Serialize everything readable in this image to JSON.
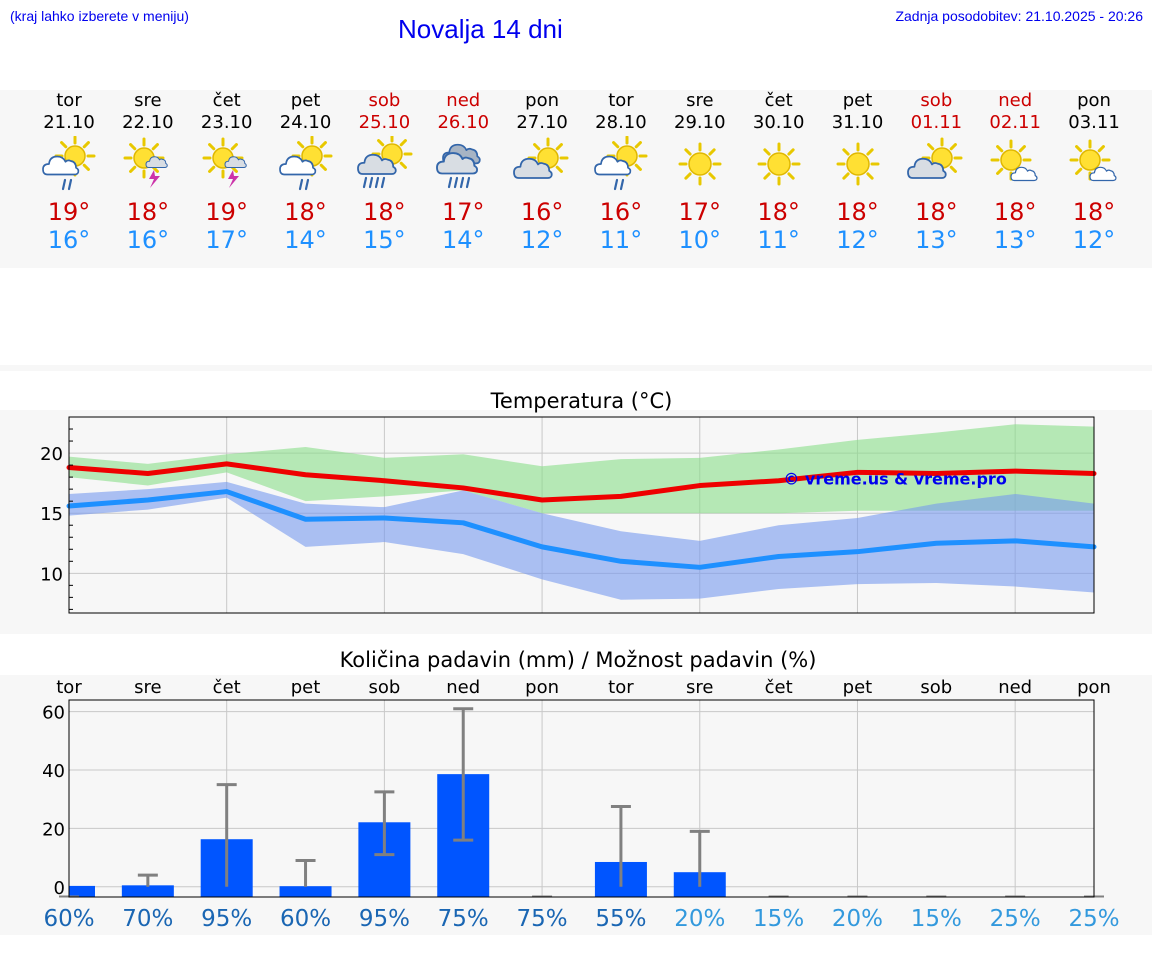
{
  "header": {
    "hint": "(kraj lahko izberete v meniju)",
    "title": "Novalja 14 dni",
    "updated": "Zadnja posodobitev: 21.10.2025 - 20:26"
  },
  "colors": {
    "max_temp": "#cc0000",
    "min_temp": "#1e90ff",
    "weekend": "#cc0000",
    "precip_bar": "#0055ff",
    "prob_dark": "#1a66b3",
    "prob_light": "#3399dd"
  },
  "days": [
    {
      "name": "tor",
      "date": "21.10",
      "icon": "sun-cloud-rain-icon",
      "tmax": "19°",
      "tmin": "16°",
      "weekend": false
    },
    {
      "name": "sre",
      "date": "22.10",
      "icon": "sun-thunder-icon",
      "tmax": "18°",
      "tmin": "16°",
      "weekend": false
    },
    {
      "name": "čet",
      "date": "23.10",
      "icon": "sun-thunder-icon",
      "tmax": "19°",
      "tmin": "17°",
      "weekend": false
    },
    {
      "name": "pet",
      "date": "24.10",
      "icon": "sun-cloud-rain-icon",
      "tmax": "18°",
      "tmin": "14°",
      "weekend": false
    },
    {
      "name": "sob",
      "date": "25.10",
      "icon": "sun-cloud-heavy-rain-icon",
      "tmax": "18°",
      "tmin": "15°",
      "weekend": true
    },
    {
      "name": "ned",
      "date": "26.10",
      "icon": "cloud-heavy-rain-icon",
      "tmax": "17°",
      "tmin": "14°",
      "weekend": true
    },
    {
      "name": "pon",
      "date": "27.10",
      "icon": "sun-cloud-icon",
      "tmax": "16°",
      "tmin": "12°",
      "weekend": false
    },
    {
      "name": "tor",
      "date": "28.10",
      "icon": "sun-cloud-rain-icon",
      "tmax": "16°",
      "tmin": "11°",
      "weekend": false
    },
    {
      "name": "sre",
      "date": "29.10",
      "icon": "sun-icon",
      "tmax": "17°",
      "tmin": "10°",
      "weekend": false
    },
    {
      "name": "čet",
      "date": "30.10",
      "icon": "sun-icon",
      "tmax": "18°",
      "tmin": "11°",
      "weekend": false
    },
    {
      "name": "pet",
      "date": "31.10",
      "icon": "sun-icon",
      "tmax": "18°",
      "tmin": "12°",
      "weekend": false
    },
    {
      "name": "sob",
      "date": "01.11",
      "icon": "sun-cloud-icon",
      "tmax": "18°",
      "tmin": "13°",
      "weekend": true
    },
    {
      "name": "ned",
      "date": "02.11",
      "icon": "sun-small-cloud-icon",
      "tmax": "18°",
      "tmin": "13°",
      "weekend": true
    },
    {
      "name": "pon",
      "date": "03.11",
      "icon": "sun-small-cloud-icon",
      "tmax": "18°",
      "tmin": "12°",
      "weekend": false
    }
  ],
  "chart_data": [
    {
      "type": "line",
      "title": "Temperatura (°C)",
      "watermark": "© vreme.us & vreme.pro",
      "x": [
        0,
        1,
        2,
        3,
        4,
        5,
        6,
        7,
        8,
        9,
        10,
        11,
        12,
        13
      ],
      "ylim": [
        6.7,
        23
      ],
      "yticks": [
        10,
        15,
        20
      ],
      "series": [
        {
          "name": "max",
          "color": "#ee0000",
          "values": [
            18.8,
            18.3,
            19.1,
            18.2,
            17.7,
            17.1,
            16.1,
            16.4,
            17.3,
            17.7,
            18.4,
            18.3,
            18.5,
            18.3
          ]
        },
        {
          "name": "min",
          "color": "#1e90ff",
          "values": [
            15.6,
            16.1,
            16.8,
            14.5,
            14.6,
            14.2,
            12.2,
            11.0,
            10.5,
            11.4,
            11.8,
            12.5,
            12.7,
            12.2
          ]
        }
      ],
      "bands": [
        {
          "name": "max-range",
          "color": "#88dd88",
          "lower": [
            18.0,
            17.3,
            18.4,
            16.0,
            16.4,
            16.9,
            15.0,
            15.0,
            15.0,
            15.0,
            15.2,
            15.2,
            15.2,
            15.2
          ],
          "upper": [
            19.7,
            19.1,
            19.9,
            20.5,
            19.6,
            19.9,
            18.9,
            19.5,
            19.6,
            20.3,
            21.1,
            21.7,
            22.4,
            22.2
          ]
        },
        {
          "name": "min-range",
          "color": "#7799ee",
          "lower": [
            14.8,
            15.3,
            16.3,
            12.2,
            12.6,
            11.6,
            9.5,
            7.8,
            7.9,
            8.7,
            9.1,
            9.2,
            8.9,
            8.4
          ],
          "upper": [
            16.6,
            17.0,
            17.6,
            15.8,
            15.5,
            16.9,
            15.0,
            13.5,
            12.7,
            14.0,
            14.6,
            15.8,
            16.6,
            15.8
          ]
        }
      ]
    },
    {
      "type": "bar",
      "title": "Količina padavin (mm) / Možnost padavin (%)",
      "categories": [
        "tor",
        "sre",
        "čet",
        "pet",
        "sob",
        "ned",
        "pon",
        "tor",
        "sre",
        "čet",
        "pet",
        "sob",
        "ned",
        "pon"
      ],
      "values": [
        0.3,
        0.5,
        16.3,
        0.2,
        22.1,
        38.6,
        0,
        8.5,
        5.0,
        0,
        0,
        0,
        0,
        0
      ],
      "error_low": [
        0,
        0,
        0,
        0,
        11.0,
        16.0,
        0,
        0,
        0,
        0,
        0,
        0,
        0,
        0
      ],
      "error_high": [
        0,
        4.0,
        35.0,
        9.0,
        32.5,
        61.0,
        0,
        27.5,
        19.0,
        0,
        0,
        0,
        0,
        0
      ],
      "probabilities": [
        "60%",
        "70%",
        "95%",
        "60%",
        "95%",
        "75%",
        "75%",
        "55%",
        "20%",
        "15%",
        "20%",
        "15%",
        "25%",
        "25%"
      ],
      "ylim": [
        -3.5,
        64
      ],
      "yticks": [
        0,
        20,
        40,
        60
      ]
    }
  ]
}
